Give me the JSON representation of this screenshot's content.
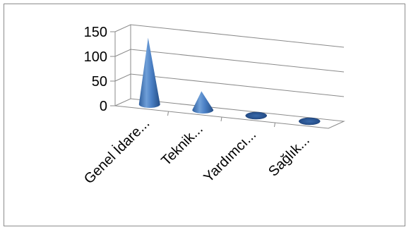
{
  "chart_data": {
    "type": "bar",
    "style": "3d-cone",
    "categories": [
      "Genel İdare...",
      "Teknik...",
      "Yardımcı...",
      "Sağlık..."
    ],
    "values": [
      135,
      38,
      0,
      0
    ],
    "ylim": [
      0,
      150
    ],
    "yticks": [
      "0",
      "50",
      "100",
      "150"
    ],
    "title": "",
    "xlabel": "",
    "ylabel": "",
    "grid": true,
    "legend": "none",
    "color": "#4f81bd"
  }
}
